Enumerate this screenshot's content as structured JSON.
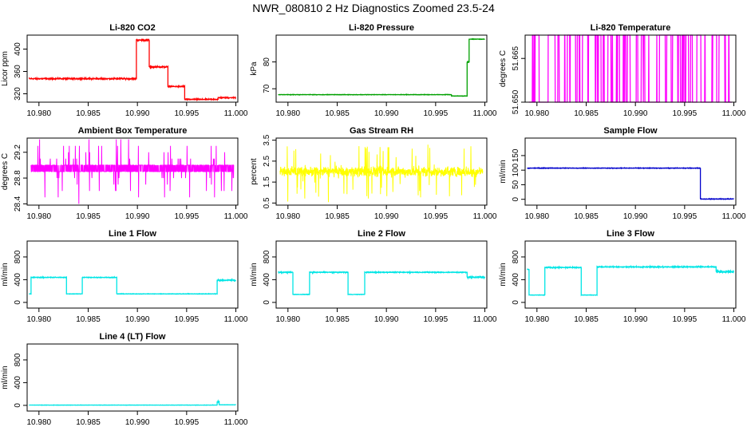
{
  "figure": {
    "title": "NWR_080810  2 Hz Diagnostics Zoomed 23.5-24"
  },
  "chart_data": [
    {
      "type": "line",
      "title": "Li-820 CO2",
      "ylabel": "Licor ppm",
      "color": "#ff0000",
      "xlim": [
        10.9788,
        11.0002
      ],
      "ylim": [
        305,
        425
      ],
      "xticks": [
        10.98,
        10.985,
        10.99,
        10.995,
        11.0
      ],
      "xtick_labels": [
        "10.980",
        "10.985",
        "10.990",
        "10.995",
        "11.000"
      ],
      "yticks": [
        320,
        360,
        400
      ],
      "ytick_labels": [
        "320",
        "360",
        "400"
      ],
      "series": [
        {
          "segments": [
            {
              "x0": 10.979,
              "x1": 10.9899,
              "level": 347,
              "noise": 1.5
            },
            {
              "x0": 10.9899,
              "x1": 10.9912,
              "level": 416,
              "noise": 1.5
            },
            {
              "x0": 10.9912,
              "x1": 10.9931,
              "level": 368,
              "noise": 1.5
            },
            {
              "x0": 10.9931,
              "x1": 10.9948,
              "level": 333,
              "noise": 1.5
            },
            {
              "x0": 10.9948,
              "x1": 10.9982,
              "level": 310,
              "noise": 1.2
            },
            {
              "x0": 10.9982,
              "x1": 11.0,
              "level": 313,
              "noise": 1.2
            }
          ]
        }
      ]
    },
    {
      "type": "line",
      "title": "Li-820 Pressure",
      "ylabel": "kPa",
      "color": "#00a000",
      "xlim": [
        10.9788,
        11.0002
      ],
      "ylim": [
        65,
        90
      ],
      "xticks": [
        10.98,
        10.985,
        10.99,
        10.995,
        11.0
      ],
      "xtick_labels": [
        "10.980",
        "10.985",
        "10.990",
        "10.995",
        "11.000"
      ],
      "yticks": [
        70,
        80
      ],
      "ytick_labels": [
        "70",
        "80"
      ],
      "series": [
        {
          "segments": [
            {
              "x0": 10.979,
              "x1": 10.9966,
              "level": 67.8,
              "noise": 0.1
            },
            {
              "x0": 10.9966,
              "x1": 10.9982,
              "level": 67.3,
              "noise": 0.1
            },
            {
              "x0": 10.9982,
              "x1": 10.9984,
              "level": 80,
              "noise": 0.3
            },
            {
              "x0": 10.9984,
              "x1": 11.0,
              "level": 88.5,
              "noise": 0.1
            }
          ]
        }
      ]
    },
    {
      "type": "line",
      "title": "Li-820 Temperature",
      "ylabel": "degrees C",
      "color": "#ff00ff",
      "xlim": [
        10.9788,
        11.0002
      ],
      "ylim": [
        51.65,
        51.673
      ],
      "xticks": [
        10.98,
        10.985,
        10.99,
        10.995,
        11.0
      ],
      "xtick_labels": [
        "10.980",
        "10.985",
        "10.990",
        "10.995",
        "11.000"
      ],
      "yticks": [
        51.65,
        51.665
      ],
      "ytick_labels": [
        "51.650",
        "51.665"
      ],
      "series": [
        {
          "mode": "binary",
          "low": 51.65,
          "high": 51.673,
          "density": 0.35
        }
      ]
    },
    {
      "type": "line",
      "title": "Ambient Box Temperature",
      "ylabel": "degrees C",
      "color": "#ff00ff",
      "xlim": [
        10.9788,
        11.0002
      ],
      "ylim": [
        28.38,
        29.42
      ],
      "xticks": [
        10.98,
        10.985,
        10.99,
        10.995,
        11.0
      ],
      "xtick_labels": [
        "10.980",
        "10.985",
        "10.990",
        "10.995",
        "11.000"
      ],
      "yticks": [
        28.4,
        28.8,
        29.2
      ],
      "ytick_labels": [
        "28.4",
        "28.8",
        "29.2"
      ],
      "series": [
        {
          "mode": "noise",
          "level": 28.95,
          "noise": 0.14,
          "spike": 0.45,
          "quant": 0.1
        }
      ]
    },
    {
      "type": "line",
      "title": "Gas Stream RH",
      "ylabel": "percent",
      "color": "#ffff00",
      "xlim": [
        10.9788,
        11.0002
      ],
      "ylim": [
        0.4,
        3.6
      ],
      "xticks": [
        10.98,
        10.985,
        10.99,
        10.995,
        11.0
      ],
      "xtick_labels": [
        "10.980",
        "10.985",
        "10.990",
        "10.995",
        "11.000"
      ],
      "yticks": [
        0.5,
        1.5,
        2.5,
        3.5
      ],
      "ytick_labels": [
        "0.5",
        "1.5",
        "2.5",
        "3.5"
      ],
      "series": [
        {
          "mode": "noise",
          "level": 2.0,
          "noise": 0.35,
          "spike": 1.3,
          "quant": 0
        }
      ]
    },
    {
      "type": "line",
      "title": "Sample Flow",
      "ylabel": "ml/min",
      "color": "#0000cc",
      "xlim": [
        10.9788,
        11.0002
      ],
      "ylim": [
        -20,
        210
      ],
      "xticks": [
        10.98,
        10.985,
        10.99,
        10.995,
        11.0
      ],
      "xtick_labels": [
        "10.980",
        "10.985",
        "10.990",
        "10.995",
        "11.000"
      ],
      "yticks": [
        0,
        50,
        100,
        150
      ],
      "ytick_labels": [
        "0",
        "50",
        "100",
        "150"
      ],
      "series": [
        {
          "segments": [
            {
              "x0": 10.979,
              "x1": 10.9966,
              "level": 107,
              "noise": 1.2
            },
            {
              "x0": 10.9966,
              "x1": 11.0,
              "level": 1,
              "noise": 1.5
            }
          ]
        }
      ]
    },
    {
      "type": "line",
      "title": "Line 1 Flow",
      "ylabel": "ml/min",
      "color": "#00e5e5",
      "xlim": [
        10.9788,
        11.0002
      ],
      "ylim": [
        -100,
        1080
      ],
      "xticks": [
        10.98,
        10.985,
        10.99,
        10.995,
        11.0
      ],
      "xtick_labels": [
        "10.980",
        "10.985",
        "10.990",
        "10.995",
        "11.000"
      ],
      "yticks": [
        0,
        400,
        800
      ],
      "ytick_labels": [
        "0",
        "400",
        "800"
      ],
      "series": [
        {
          "segments": [
            {
              "x0": 10.979,
              "x1": 10.9792,
              "level": 150,
              "noise": 5
            },
            {
              "x0": 10.9792,
              "x1": 10.9828,
              "level": 440,
              "noise": 8
            },
            {
              "x0": 10.9828,
              "x1": 10.9844,
              "level": 150,
              "noise": 5
            },
            {
              "x0": 10.9844,
              "x1": 10.9879,
              "level": 440,
              "noise": 8
            },
            {
              "x0": 10.9879,
              "x1": 10.9981,
              "level": 150,
              "noise": 5
            },
            {
              "x0": 10.9981,
              "x1": 11.0,
              "level": 390,
              "noise": 15
            }
          ]
        }
      ]
    },
    {
      "type": "line",
      "title": "Line 2 Flow",
      "ylabel": "ml/min",
      "color": "#00e5e5",
      "xlim": [
        10.9788,
        11.0002
      ],
      "ylim": [
        -100,
        1080
      ],
      "xticks": [
        10.98,
        10.985,
        10.99,
        10.995,
        11.0
      ],
      "xtick_labels": [
        "10.980",
        "10.985",
        "10.990",
        "10.995",
        "11.000"
      ],
      "yticks": [
        0,
        400,
        800
      ],
      "ytick_labels": [
        "0",
        "400",
        "800"
      ],
      "series": [
        {
          "segments": [
            {
              "x0": 10.979,
              "x1": 10.9805,
              "level": 530,
              "noise": 10
            },
            {
              "x0": 10.9805,
              "x1": 10.9822,
              "level": 140,
              "noise": 5
            },
            {
              "x0": 10.9822,
              "x1": 10.9861,
              "level": 530,
              "noise": 10
            },
            {
              "x0": 10.9861,
              "x1": 10.9878,
              "level": 140,
              "noise": 5
            },
            {
              "x0": 10.9878,
              "x1": 10.9982,
              "level": 530,
              "noise": 10
            },
            {
              "x0": 10.9982,
              "x1": 11.0,
              "level": 445,
              "noise": 25
            }
          ]
        }
      ]
    },
    {
      "type": "line",
      "title": "Line 3 Flow",
      "ylabel": "ml/min",
      "color": "#00e5e5",
      "xlim": [
        10.9788,
        11.0002
      ],
      "ylim": [
        -100,
        1080
      ],
      "xticks": [
        10.98,
        10.985,
        10.99,
        10.995,
        11.0
      ],
      "xtick_labels": [
        "10.980",
        "10.985",
        "10.990",
        "10.995",
        "11.000"
      ],
      "yticks": [
        0,
        400,
        800
      ],
      "ytick_labels": [
        "0",
        "400",
        "800"
      ],
      "series": [
        {
          "segments": [
            {
              "x0": 10.979,
              "x1": 10.9792,
              "level": 580,
              "noise": 10
            },
            {
              "x0": 10.9792,
              "x1": 10.9808,
              "level": 130,
              "noise": 5
            },
            {
              "x0": 10.9808,
              "x1": 10.9845,
              "level": 615,
              "noise": 12
            },
            {
              "x0": 10.9845,
              "x1": 10.9861,
              "level": 130,
              "noise": 5
            },
            {
              "x0": 10.9861,
              "x1": 10.9982,
              "level": 625,
              "noise": 12
            },
            {
              "x0": 10.9982,
              "x1": 11.0,
              "level": 540,
              "noise": 30
            }
          ]
        }
      ]
    },
    {
      "type": "line",
      "title": "Line 4 (LT) Flow",
      "ylabel": "ml/min",
      "color": "#00e5e5",
      "xlim": [
        10.9788,
        11.0002
      ],
      "ylim": [
        -100,
        1080
      ],
      "xticks": [
        10.98,
        10.985,
        10.99,
        10.995,
        11.0
      ],
      "xtick_labels": [
        "10.980",
        "10.985",
        "10.990",
        "10.995",
        "11.000"
      ],
      "yticks": [
        0,
        400,
        800
      ],
      "ytick_labels": [
        "0",
        "400",
        "800"
      ],
      "series": [
        {
          "segments": [
            {
              "x0": 10.979,
              "x1": 10.9981,
              "level": 5,
              "noise": 3
            },
            {
              "x0": 10.9981,
              "x1": 10.9983,
              "level": 70,
              "noise": 20
            },
            {
              "x0": 10.9983,
              "x1": 11.0,
              "level": 10,
              "noise": 3
            }
          ]
        }
      ]
    }
  ]
}
